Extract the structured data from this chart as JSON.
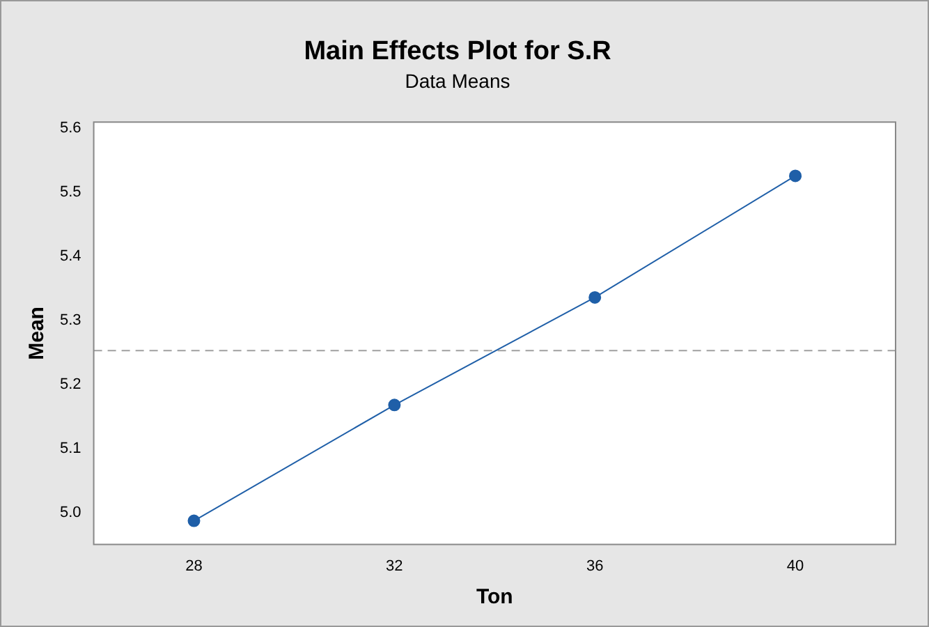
{
  "chart_data": {
    "type": "line",
    "title": "Main Effects Plot for S.R",
    "subtitle": "Data Means",
    "xlabel": "Ton",
    "ylabel": "Mean",
    "x": [
      28,
      32,
      36,
      40
    ],
    "series": [
      {
        "color": "#1f5fa8",
        "values": [
          4.987,
          5.168,
          5.336,
          5.526
        ]
      }
    ],
    "xlim": [
      26,
      42
    ],
    "xticks": [
      28,
      32,
      36,
      40
    ],
    "ylim": [
      4.95,
      5.61
    ],
    "yticks": [
      {
        "value": 5.0,
        "label": "5.0"
      },
      {
        "value": 5.1,
        "label": "5.1"
      },
      {
        "value": 5.2,
        "label": "5.2"
      },
      {
        "value": 5.3,
        "label": "5.3"
      },
      {
        "value": 5.4,
        "label": "5.4"
      },
      {
        "value": 5.5,
        "label": "5.5"
      },
      {
        "value": 5.6,
        "label": "5.6"
      }
    ],
    "ref_lines": [
      {
        "axis": "y",
        "value": 5.253,
        "color": "#a0a0a0",
        "line_style": "dashed"
      }
    ],
    "grid": false,
    "legend": false,
    "marker": "circle",
    "line_style": "solid"
  }
}
